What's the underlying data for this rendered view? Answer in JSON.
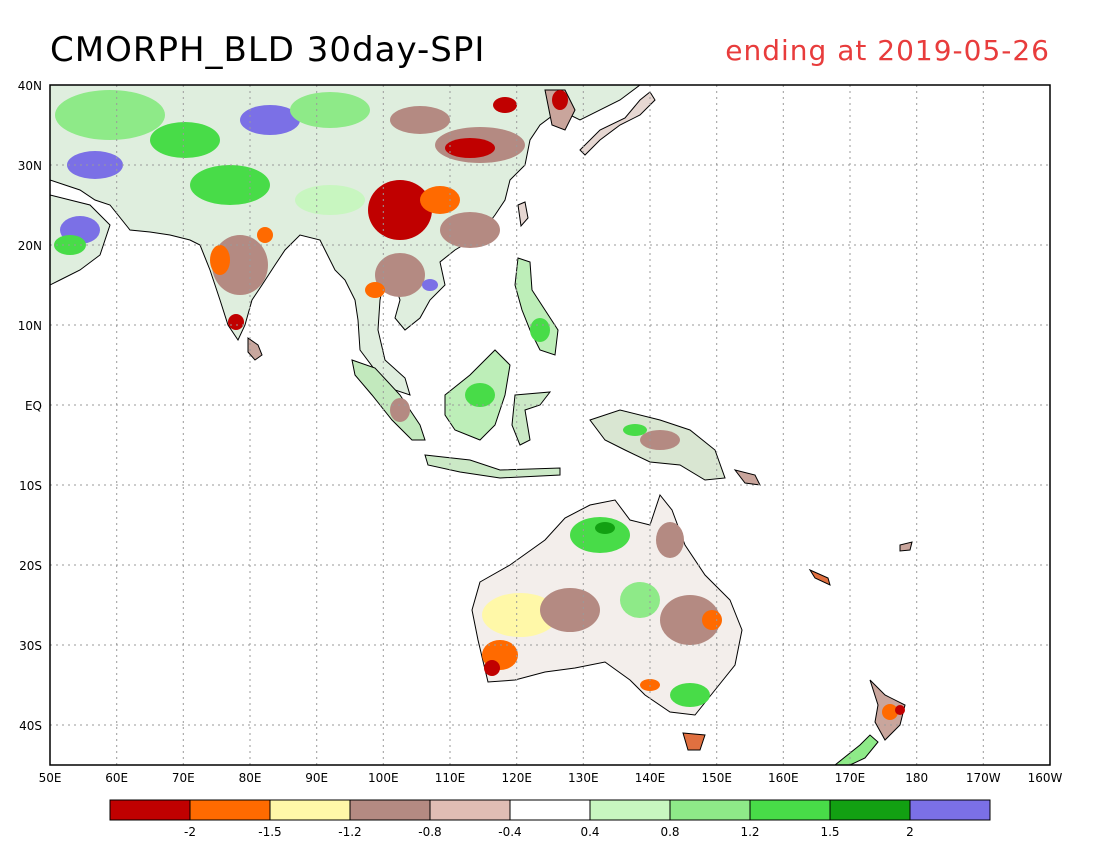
{
  "title": "CMORPH_BLD 30day-SPI",
  "subtitle": "ending at 2019-05-26",
  "colors": {
    "title": "#000000",
    "subtitle": "#e83c3c",
    "ocean": "#ffffff",
    "coastline": "#000000",
    "grid": "#9a9a9a"
  },
  "map": {
    "lon_range": [
      50,
      200
    ],
    "lat_range": [
      -45,
      40
    ],
    "lon_ticks": [
      "50E",
      "60E",
      "70E",
      "80E",
      "90E",
      "100E",
      "110E",
      "120E",
      "130E",
      "140E",
      "150E",
      "160E",
      "170E",
      "180",
      "170W",
      "160W"
    ],
    "lat_ticks": [
      "40N",
      "30N",
      "20N",
      "10N",
      "EQ",
      "10S",
      "20S",
      "30S",
      "40S"
    ]
  },
  "legend": {
    "colors": [
      "#c00000",
      "#ff6a00",
      "#fff8a8",
      "#b48a82",
      "#e0bdb4",
      "#ffffff",
      "#c8f6c0",
      "#8eea88",
      "#48dc48",
      "#12a012",
      "#7b70e6"
    ],
    "labels": [
      "-2",
      "-1.5",
      "-1.2",
      "-0.8",
      "-0.4",
      "0.4",
      "0.8",
      "1.2",
      "1.5",
      "2"
    ]
  }
}
